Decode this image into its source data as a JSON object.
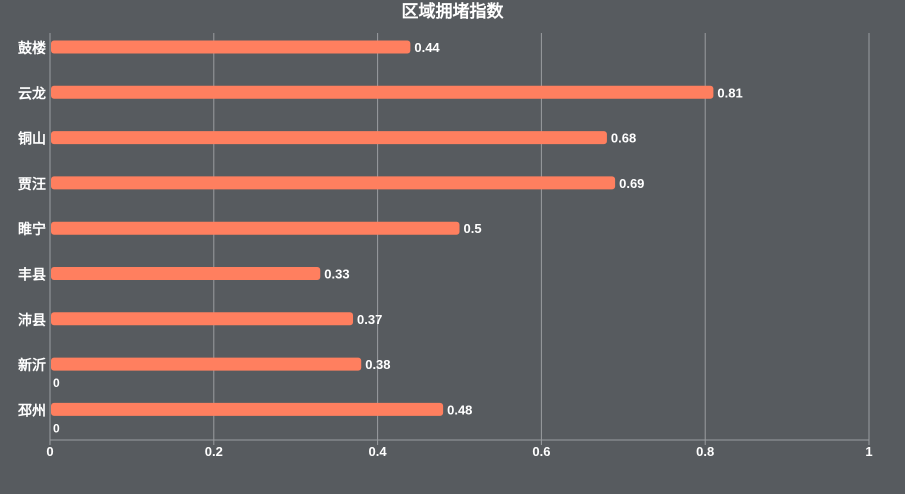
{
  "colors": {
    "background": "#575b5f",
    "bar": "#ff7f5f",
    "text": "#ffffff",
    "grid": "#9a9da0"
  },
  "chart_data": {
    "type": "bar",
    "orientation": "horizontal",
    "title": "区域拥堵指数",
    "categories": [
      "鼓楼",
      "云龙",
      "铜山",
      "贾汪",
      "睢宁",
      "丰县",
      "沛县",
      "新沂",
      "邳州"
    ],
    "series": [
      {
        "values": [
          0.44,
          0.81,
          0.68,
          0.69,
          0.5,
          0.33,
          0.37,
          0.38,
          0.48
        ]
      }
    ],
    "extra_labels": [
      {
        "category": "新沂",
        "text": "0"
      },
      {
        "category": "邳州",
        "text": "0"
      }
    ],
    "xlim": [
      0,
      1
    ],
    "xticks": [
      0,
      0.2,
      0.4,
      0.6,
      0.8,
      1
    ],
    "xtick_labels": [
      "0",
      "0.2",
      "0.4",
      "0.6",
      "0.8",
      "1"
    ],
    "grid": "vertical",
    "legend": "none",
    "data_labels": true
  }
}
